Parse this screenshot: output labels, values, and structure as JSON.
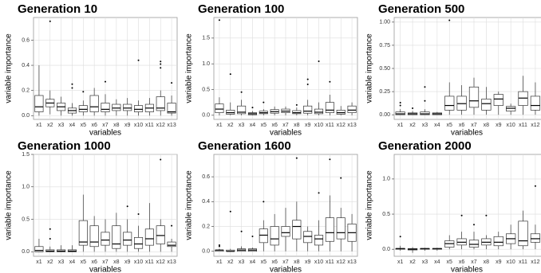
{
  "chart_data": [
    {
      "type": "box",
      "title": "Generation 10",
      "xlabel": "variables",
      "ylabel": "variable importance",
      "categories": [
        "x1",
        "x2",
        "x3",
        "x4",
        "x5",
        "x6",
        "x7",
        "x8",
        "x9",
        "x10",
        "x11",
        "x12",
        "x13"
      ],
      "ylim": [
        -0.03,
        0.78
      ],
      "yticks": [
        {
          "value": 0,
          "label": "0.0"
        },
        {
          "value": 0.2,
          "label": "0.2"
        },
        {
          "value": 0.4,
          "label": "0.4"
        },
        {
          "value": 0.6,
          "label": "0.6"
        }
      ],
      "grid": true,
      "boxes": [
        [
          0,
          0.03,
          0.07,
          0.16,
          0.4
        ],
        [
          0.01,
          0.07,
          0.1,
          0.13,
          0.2
        ],
        [
          0,
          0.04,
          0.07,
          0.1,
          0.15
        ],
        [
          0,
          0.02,
          0.04,
          0.06,
          0.1
        ],
        [
          0,
          0.03,
          0.05,
          0.08,
          0.12
        ],
        [
          0,
          0.03,
          0.07,
          0.16,
          0.22
        ],
        [
          0,
          0.03,
          0.05,
          0.1,
          0.17
        ],
        [
          0,
          0.04,
          0.06,
          0.09,
          0.13
        ],
        [
          0,
          0.04,
          0.06,
          0.09,
          0.14
        ],
        [
          0,
          0.03,
          0.05,
          0.08,
          0.12
        ],
        [
          0,
          0.03,
          0.06,
          0.09,
          0.14
        ],
        [
          0,
          0.04,
          0.06,
          0.15,
          0.2
        ],
        [
          0,
          0.02,
          0.03,
          0.1,
          0.16
        ]
      ],
      "outliers": [
        [],
        [
          0.75
        ],
        [],
        [
          0.22,
          0.25
        ],
        [
          0.19
        ],
        [],
        [
          0.27
        ],
        [],
        [],
        [
          0.44
        ],
        [],
        [
          0.38,
          0.41,
          0.43
        ],
        [
          0.26
        ]
      ]
    },
    {
      "type": "box",
      "title": "Generation 100",
      "xlabel": "variables",
      "ylabel": "variable importance",
      "categories": [
        "x1",
        "x2",
        "x3",
        "x4",
        "x5",
        "x6",
        "x7",
        "x8",
        "x9",
        "x10",
        "x11",
        "x12",
        "x13"
      ],
      "ylim": [
        -0.08,
        1.9
      ],
      "yticks": [
        {
          "value": 0,
          "label": "0.0"
        },
        {
          "value": 0.5,
          "label": "0.5"
        },
        {
          "value": 1,
          "label": "1.0"
        },
        {
          "value": 1.5,
          "label": "1.5"
        }
      ],
      "grid": true,
      "boxes": [
        [
          0,
          0.05,
          0.12,
          0.22,
          0.35
        ],
        [
          0,
          0.02,
          0.05,
          0.1,
          0.25
        ],
        [
          0,
          0.03,
          0.06,
          0.18,
          0.3
        ],
        [
          0,
          0.01,
          0.03,
          0.05,
          0.08
        ],
        [
          0,
          0.03,
          0.05,
          0.08,
          0.12
        ],
        [
          0,
          0.04,
          0.07,
          0.11,
          0.17
        ],
        [
          0,
          0.05,
          0.08,
          0.12,
          0.17
        ],
        [
          0,
          0.03,
          0.05,
          0.09,
          0.15
        ],
        [
          0,
          0.04,
          0.08,
          0.18,
          0.3
        ],
        [
          0,
          0.03,
          0.06,
          0.12,
          0.25
        ],
        [
          0,
          0.05,
          0.1,
          0.25,
          0.4
        ],
        [
          0,
          0.02,
          0.05,
          0.1,
          0.18
        ],
        [
          0,
          0.05,
          0.1,
          0.18,
          0.25
        ]
      ],
      "outliers": [
        [
          1.85
        ],
        [
          0.8
        ],
        [
          0.45
        ],
        [
          0.15
        ],
        [
          0.25
        ],
        [],
        [],
        [
          0.2
        ],
        [
          0.6,
          0.7
        ],
        [
          1.05
        ],
        [
          0.65
        ],
        [],
        []
      ]
    },
    {
      "type": "box",
      "title": "Generation 500",
      "xlabel": "variables",
      "ylabel": "variable importance",
      "categories": [
        "x1",
        "x2",
        "x3",
        "x4",
        "x5",
        "x6",
        "x7",
        "x8",
        "x9",
        "x10",
        "x11",
        "x12",
        "x13"
      ],
      "ylim": [
        -0.05,
        1.05
      ],
      "yticks": [
        {
          "value": 0,
          "label": "0.00"
        },
        {
          "value": 0.25,
          "label": "0.25"
        },
        {
          "value": 0.5,
          "label": "0.50"
        },
        {
          "value": 0.75,
          "label": "0.75"
        },
        {
          "value": 1,
          "label": "1.00"
        }
      ],
      "grid": true,
      "boxes": [
        [
          0,
          0,
          0.01,
          0.03,
          0.06
        ],
        [
          0,
          0,
          0.01,
          0.02,
          0.04
        ],
        [
          0,
          0,
          0.01,
          0.03,
          0.06
        ],
        [
          0,
          0,
          0.01,
          0.02,
          0.03
        ],
        [
          0,
          0.05,
          0.1,
          0.2,
          0.35
        ],
        [
          0,
          0.05,
          0.12,
          0.2,
          0.32
        ],
        [
          0,
          0.08,
          0.15,
          0.3,
          0.4
        ],
        [
          0,
          0.05,
          0.12,
          0.17,
          0.3
        ],
        [
          0,
          0.1,
          0.17,
          0.22,
          0.25
        ],
        [
          0,
          0.04,
          0.07,
          0.09,
          0.12
        ],
        [
          0,
          0.1,
          0.18,
          0.25,
          0.42
        ],
        [
          0,
          0.05,
          0.1,
          0.2,
          0.35
        ],
        [
          0,
          0.1,
          0.18,
          0.22,
          0.35
        ]
      ],
      "outliers": [
        [
          0.1,
          0.13
        ],
        [
          0.07
        ],
        [
          0.15,
          0.3
        ],
        [],
        [
          1.02
        ],
        [],
        [],
        [],
        [],
        [],
        [],
        [],
        []
      ]
    },
    {
      "type": "box",
      "title": "Generation 1000",
      "xlabel": "variables",
      "ylabel": "variable importance",
      "categories": [
        "x1",
        "x2",
        "x3",
        "x4",
        "x5",
        "x6",
        "x7",
        "x8",
        "x9",
        "x10",
        "x11",
        "x12",
        "x13"
      ],
      "ylim": [
        -0.07,
        1.5
      ],
      "yticks": [
        {
          "value": 0,
          "label": "0.0"
        },
        {
          "value": 0.5,
          "label": "0.5"
        },
        {
          "value": 1,
          "label": "1.0"
        },
        {
          "value": 1.5,
          "label": "1.5"
        }
      ],
      "grid": true,
      "boxes": [
        [
          0,
          0,
          0.02,
          0.08,
          0.2
        ],
        [
          0,
          0,
          0.01,
          0.03,
          0.08
        ],
        [
          0,
          0,
          0.01,
          0.03,
          0.1
        ],
        [
          0,
          0,
          0.01,
          0.03,
          0.1
        ],
        [
          0,
          0.1,
          0.15,
          0.48,
          0.88
        ],
        [
          0,
          0.08,
          0.15,
          0.4,
          0.55
        ],
        [
          0,
          0.1,
          0.18,
          0.3,
          0.5
        ],
        [
          0,
          0.05,
          0.12,
          0.4,
          0.6
        ],
        [
          0,
          0.1,
          0.18,
          0.3,
          0.5
        ],
        [
          0,
          0.05,
          0.12,
          0.22,
          0.4
        ],
        [
          0,
          0.1,
          0.2,
          0.35,
          0.75
        ],
        [
          0,
          0.12,
          0.25,
          0.4,
          0.5
        ],
        [
          0,
          0.08,
          0.1,
          0.15,
          0.2
        ]
      ],
      "outliers": [
        [],
        [
          0.2,
          0.35
        ],
        [],
        [],
        [],
        [],
        [],
        [],
        [
          0.7
        ],
        [
          0.58
        ],
        [],
        [
          1.42
        ],
        [
          0.4
        ]
      ]
    },
    {
      "type": "box",
      "title": "Generation 1600",
      "xlabel": "variables",
      "ylabel": "variable importance",
      "categories": [
        "x1",
        "x2",
        "x3",
        "x4",
        "x5",
        "x6",
        "x7",
        "x8",
        "x9",
        "x10",
        "x11",
        "x12",
        "x13"
      ],
      "ylim": [
        -0.04,
        0.78
      ],
      "yticks": [
        {
          "value": 0,
          "label": "0.0"
        },
        {
          "value": 0.2,
          "label": "0.2"
        },
        {
          "value": 0.4,
          "label": "0.4"
        },
        {
          "value": 0.6,
          "label": "0.6"
        }
      ],
      "grid": true,
      "boxes": [
        [
          0,
          0,
          0.01,
          0.01,
          0.02
        ],
        [
          0,
          0,
          0,
          0.01,
          0.02
        ],
        [
          0,
          0,
          0.01,
          0.02,
          0.04
        ],
        [
          0,
          0,
          0.01,
          0.02,
          0.03
        ],
        [
          0,
          0.07,
          0.13,
          0.18,
          0.25
        ],
        [
          0,
          0.05,
          0.1,
          0.2,
          0.3
        ],
        [
          0,
          0.12,
          0.15,
          0.2,
          0.35
        ],
        [
          0,
          0.1,
          0.2,
          0.25,
          0.4
        ],
        [
          0,
          0.07,
          0.12,
          0.16,
          0.2
        ],
        [
          0,
          0.05,
          0.1,
          0.13,
          0.25
        ],
        [
          0,
          0.08,
          0.15,
          0.27,
          0.45
        ],
        [
          0,
          0.1,
          0.15,
          0.27,
          0.35
        ],
        [
          0,
          0.08,
          0.15,
          0.22,
          0.3
        ]
      ],
      "outliers": [
        [
          0.04,
          0.05
        ],
        [
          0.32
        ],
        [
          0.16
        ],
        [
          0.12
        ],
        [
          0.4
        ],
        [],
        [],
        [
          0.75
        ],
        [],
        [
          0.47
        ],
        [
          0.74
        ],
        [
          0.59
        ],
        []
      ]
    },
    {
      "type": "box",
      "title": "Generation 2000",
      "xlabel": "variables",
      "ylabel": "variable importance",
      "categories": [
        "x1",
        "x2",
        "x3",
        "x4",
        "x5",
        "x6",
        "x7",
        "x8",
        "x9",
        "x10",
        "x11",
        "x12",
        "x13"
      ],
      "ylim": [
        -0.1,
        1.35
      ],
      "yticks": [
        {
          "value": 0,
          "label": "0.0"
        },
        {
          "value": 0.5,
          "label": "0.5"
        },
        {
          "value": 1,
          "label": "1.0"
        }
      ],
      "grid": true,
      "boxes": [
        [
          -0.02,
          0,
          0.01,
          0.01,
          0.05
        ],
        [
          -0.05,
          -0.01,
          0,
          0.01,
          0.03
        ],
        [
          -0.02,
          0,
          0.01,
          0.01,
          0.02
        ],
        [
          -0.02,
          0,
          0.01,
          0.01,
          0.02
        ],
        [
          0,
          0.03,
          0.08,
          0.12,
          0.2
        ],
        [
          0,
          0.06,
          0.1,
          0.15,
          0.25
        ],
        [
          0,
          0.03,
          0.07,
          0.13,
          0.25
        ],
        [
          0,
          0.06,
          0.1,
          0.15,
          0.2
        ],
        [
          0,
          0.05,
          0.1,
          0.18,
          0.25
        ],
        [
          0,
          0.08,
          0.15,
          0.22,
          0.35
        ],
        [
          0,
          0.05,
          0.12,
          0.4,
          0.55
        ],
        [
          0,
          0.1,
          0.15,
          0.22,
          0.35
        ],
        [
          0,
          0.1,
          0.15,
          0.22,
          0.35
        ]
      ],
      "outliers": [
        [
          0.18
        ],
        [],
        [],
        [],
        [],
        [
          0.48
        ],
        [
          0.35
        ],
        [
          0.48
        ],
        [],
        [],
        [],
        [
          0.9
        ],
        [
          1.3
        ]
      ]
    }
  ]
}
